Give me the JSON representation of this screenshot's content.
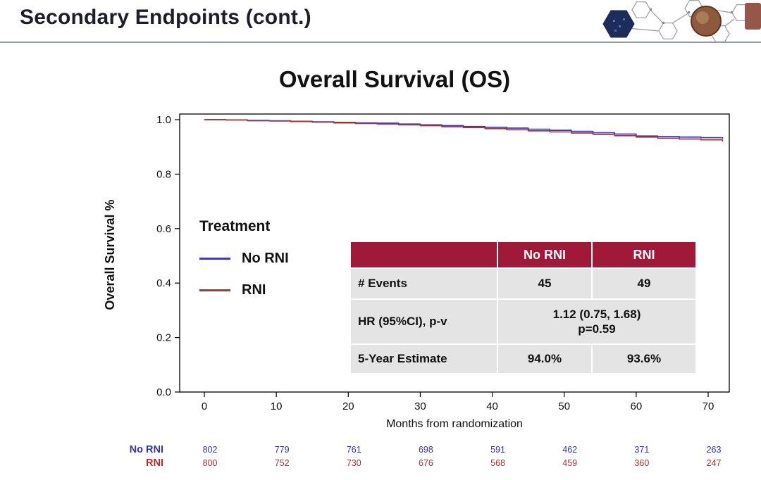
{
  "header": {
    "title": "Secondary Endpoints (cont.)"
  },
  "main": {
    "chart_title": "Overall Survival (OS)"
  },
  "colors": {
    "table_header_bg": "#a11938",
    "header_rule": "#8d9bb3",
    "no_rni_blue": "#3b3bbf",
    "rni_red": "#a63538"
  },
  "chart_data": {
    "type": "line",
    "subtype": "kaplan-meier-step",
    "title": "Overall Survival (OS)",
    "xlabel": "Months from randomization",
    "ylabel": "Overall Survival %",
    "xlim": [
      0,
      72
    ],
    "ylim": [
      0,
      1
    ],
    "xticks": [
      0,
      10,
      20,
      30,
      40,
      50,
      60,
      70
    ],
    "yticks": [
      0,
      0.2,
      0.4,
      0.6,
      0.8,
      1.0
    ],
    "grid": false,
    "legend_title": "Treatment",
    "legend_position": "inside-left",
    "series": [
      {
        "name": "No RNI",
        "color": "#3b3bbf",
        "x": [
          0,
          3,
          6,
          9,
          12,
          15,
          18,
          21,
          24,
          27,
          30,
          33,
          36,
          39,
          42,
          45,
          48,
          51,
          54,
          57,
          60,
          63,
          66,
          69,
          72
        ],
        "y": [
          1.0,
          0.999,
          0.997,
          0.996,
          0.994,
          0.992,
          0.99,
          0.988,
          0.987,
          0.984,
          0.981,
          0.978,
          0.975,
          0.972,
          0.969,
          0.965,
          0.961,
          0.957,
          0.952,
          0.947,
          0.94,
          0.938,
          0.936,
          0.934,
          0.93
        ]
      },
      {
        "name": "RNI",
        "color": "#a63538",
        "x": [
          0,
          3,
          6,
          9,
          12,
          15,
          18,
          21,
          24,
          27,
          30,
          33,
          36,
          39,
          42,
          45,
          48,
          51,
          54,
          57,
          60,
          63,
          66,
          69,
          72
        ],
        "y": [
          1.0,
          0.999,
          0.996,
          0.995,
          0.993,
          0.991,
          0.988,
          0.986,
          0.984,
          0.981,
          0.978,
          0.974,
          0.971,
          0.967,
          0.963,
          0.959,
          0.955,
          0.951,
          0.946,
          0.941,
          0.936,
          0.932,
          0.929,
          0.926,
          0.92
        ]
      }
    ],
    "at_risk": {
      "times": [
        0,
        10,
        20,
        30,
        40,
        50,
        60,
        70
      ],
      "rows": [
        {
          "name": "No RNI",
          "color": "#3434ad",
          "values": [
            802,
            779,
            761,
            698,
            591,
            462,
            371,
            263
          ]
        },
        {
          "name": "RNI",
          "color": "#c22a2a",
          "values": [
            800,
            752,
            730,
            676,
            568,
            459,
            360,
            247
          ]
        }
      ]
    }
  },
  "stats_table": {
    "col_headers": [
      "",
      "No RNI",
      "RNI"
    ],
    "rows": {
      "events": {
        "label": "# Events",
        "no_rni": "45",
        "rni": "49"
      },
      "hr": {
        "label": "HR (95%CI), p-v",
        "value": "1.12 (0.75, 1.68)\np=0.59"
      },
      "estimate": {
        "label": "5-Year Estimate",
        "no_rni": "94.0%",
        "rni": "93.6%"
      }
    }
  }
}
